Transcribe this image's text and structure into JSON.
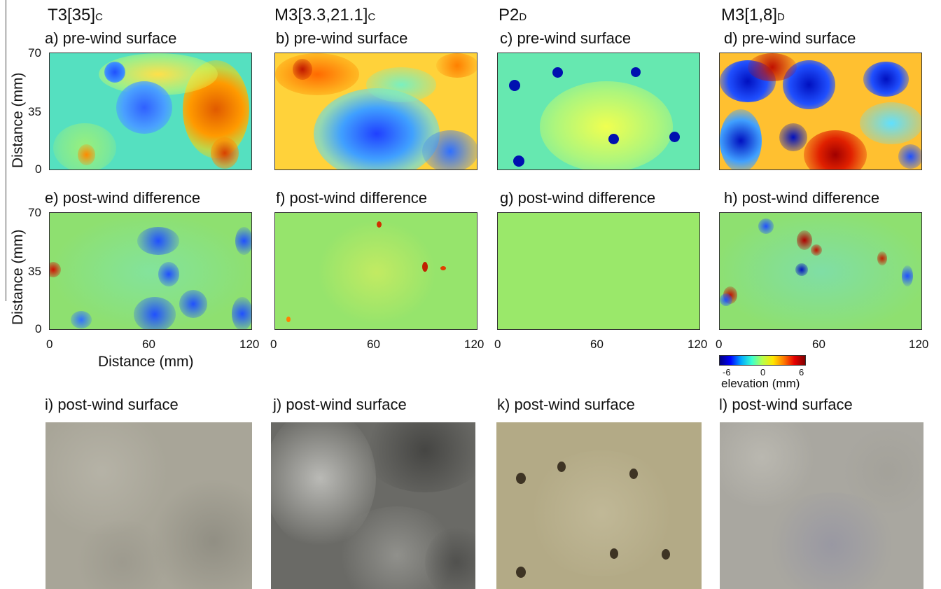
{
  "columns": [
    {
      "main": "T3[35]",
      "sub": "C"
    },
    {
      "main": "M3[3.3,21.1]",
      "sub": "C"
    },
    {
      "main": "P2",
      "sub": "D"
    },
    {
      "main": "M3[1,8]",
      "sub": "D"
    }
  ],
  "rows": {
    "pre": [
      "a) pre-wind surface",
      "b) pre-wind surface",
      "c) pre-wind surface",
      "d) pre-wind surface"
    ],
    "diff": [
      "e) post-wind difference",
      "f) post-wind difference",
      "g) post-wind difference",
      "h) post-wind difference"
    ],
    "photo": [
      "i) post-wind surface",
      "j) post-wind surface",
      "k) post-wind surface",
      "l) post-wind surface"
    ]
  },
  "axes": {
    "ylabel": "Distance (mm)",
    "xlabel": "Distance (mm)",
    "yticks": [
      "70",
      "35",
      "0"
    ],
    "xticks": [
      "0",
      "60",
      "120"
    ]
  },
  "colorbar": {
    "label": "elevation (mm)",
    "ticks": [
      "-6",
      "0",
      "6"
    ],
    "colors": [
      "#00007f",
      "#0000ff",
      "#00a8ff",
      "#39ffd0",
      "#b7ff4c",
      "#ffe600",
      "#ff7a00",
      "#e60000",
      "#7f0000"
    ]
  }
}
